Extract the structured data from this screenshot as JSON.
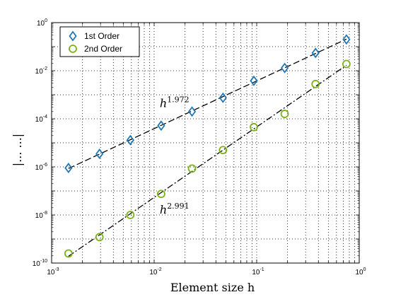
{
  "chart_data": {
    "type": "scatter",
    "title": "",
    "xlabel": "Element size h",
    "ylabel": "|...  ...|",
    "xscale": "log",
    "yscale": "log",
    "xlim": [
      0.001,
      1
    ],
    "ylim": [
      1e-10,
      1
    ],
    "grid": true,
    "legend_position": "top-left",
    "x_tick_labels": [
      {
        "base": "10",
        "exp": "-3"
      },
      {
        "base": "10",
        "exp": "-2"
      },
      {
        "base": "10",
        "exp": "-1"
      },
      {
        "base": "10",
        "exp": "0"
      }
    ],
    "y_tick_labels": [
      {
        "base": "10",
        "exp": "-10"
      },
      {
        "base": "10",
        "exp": "-8"
      },
      {
        "base": "10",
        "exp": "-6"
      },
      {
        "base": "10",
        "exp": "-4"
      },
      {
        "base": "10",
        "exp": "-2"
      },
      {
        "base": "10",
        "exp": "0"
      }
    ],
    "series": [
      {
        "name": "1st Order",
        "marker": "diamond",
        "color": "#1f77b4",
        "fit_line_style": "dashed",
        "annotation": {
          "base": "h",
          "exp": "1.972"
        },
        "x": [
          0.00146,
          0.00293,
          0.00586,
          0.0117,
          0.0234,
          0.0469,
          0.0938,
          0.1875,
          0.375,
          0.75
        ],
        "y": [
          9e-07,
          3.5e-06,
          1.3e-05,
          5.2e-05,
          0.0002,
          0.00075,
          0.0038,
          0.013,
          0.055,
          0.2
        ]
      },
      {
        "name": "2nd Order",
        "marker": "circle",
        "color": "#7ab317",
        "fit_line_style": "dash-dot",
        "annotation": {
          "base": "h",
          "exp": "2.991"
        },
        "x": [
          0.00146,
          0.00293,
          0.00586,
          0.0117,
          0.0234,
          0.0469,
          0.0938,
          0.1875,
          0.375,
          0.75
        ],
        "y": [
          2.5e-10,
          1.2e-09,
          1e-08,
          7.5e-08,
          8.5e-07,
          5e-06,
          4.5e-05,
          0.00016,
          0.0028,
          0.019
        ]
      }
    ]
  }
}
